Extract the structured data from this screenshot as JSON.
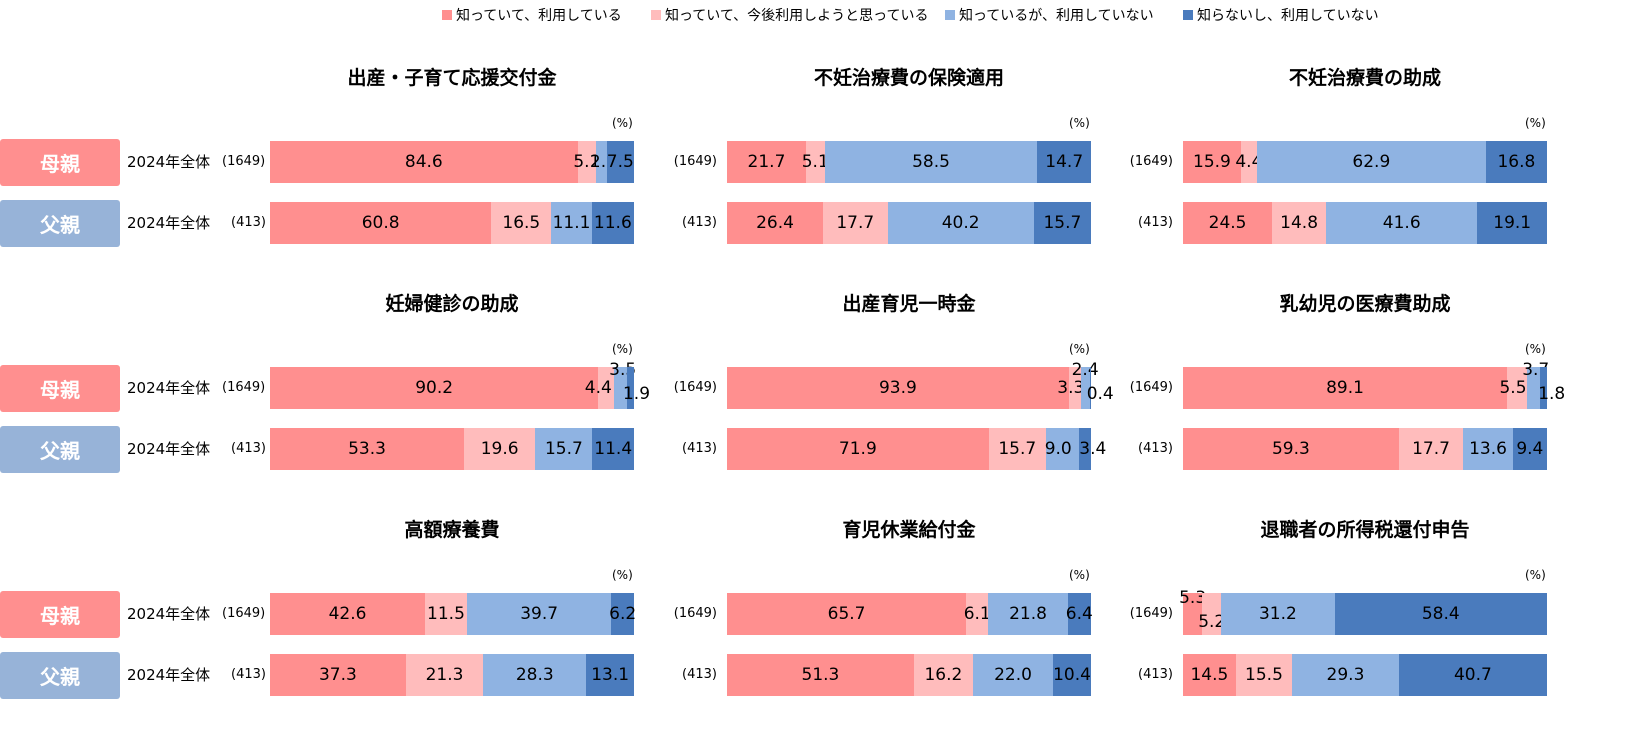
{
  "legend": [
    {
      "label": "知っていて、利用している",
      "color": "#ff8f8f"
    },
    {
      "label": "知っていて、今後利用しようと思っている",
      "color": "#ffbcbc"
    },
    {
      "label": "知っているが、利用していない",
      "color": "#8fb3e2"
    },
    {
      "label": "知らないし、利用していない",
      "color": "#4a7bbd"
    }
  ],
  "rows": {
    "mother": {
      "badge": "母親",
      "year": "2024年全体",
      "n": "(1649)"
    },
    "father": {
      "badge": "父親",
      "year": "2024年全体",
      "n": "(413)"
    }
  },
  "unit": "(%)",
  "chart_data": [
    {
      "type": "bar",
      "stacked": true,
      "title": "出産・子育て応援交付金",
      "unit": "(%)",
      "series_order": [
        "知っていて、利用している",
        "知っていて、今後利用しようと思っている",
        "知っているが、利用していない",
        "知らないし、利用していない"
      ],
      "mother": {
        "n": "(1649)",
        "values": [
          84.6,
          5.1,
          2.9,
          7.5
        ]
      },
      "father": {
        "n": "(413)",
        "values": [
          60.8,
          16.5,
          11.1,
          11.6
        ]
      }
    },
    {
      "type": "bar",
      "stacked": true,
      "title": "不妊治療費の保険適用",
      "unit": "(%)",
      "series_order": [
        "知っていて、利用している",
        "知っていて、今後利用しようと思っている",
        "知っているが、利用していない",
        "知らないし、利用していない"
      ],
      "mother": {
        "n": "(1649)",
        "values": [
          21.7,
          5.1,
          58.5,
          14.7
        ]
      },
      "father": {
        "n": "(413)",
        "values": [
          26.4,
          17.7,
          40.2,
          15.7
        ]
      }
    },
    {
      "type": "bar",
      "stacked": true,
      "title": "不妊治療費の助成",
      "unit": "(%)",
      "series_order": [
        "知っていて、利用している",
        "知っていて、今後利用しようと思っている",
        "知っているが、利用していない",
        "知らないし、利用していない"
      ],
      "mother": {
        "n": "(1649)",
        "values": [
          15.9,
          4.4,
          62.9,
          16.8
        ]
      },
      "father": {
        "n": "(413)",
        "values": [
          24.5,
          14.8,
          41.6,
          19.1
        ]
      }
    },
    {
      "type": "bar",
      "stacked": true,
      "title": "妊婦健診の助成",
      "unit": "(%)",
      "series_order": [
        "知っていて、利用している",
        "知っていて、今後利用しようと思っている",
        "知っているが、利用していない",
        "知らないし、利用していない"
      ],
      "mother": {
        "n": "(1649)",
        "values": [
          90.2,
          4.4,
          3.5,
          1.9
        ]
      },
      "father": {
        "n": "(413)",
        "values": [
          53.3,
          19.6,
          15.7,
          11.4
        ]
      }
    },
    {
      "type": "bar",
      "stacked": true,
      "title": "出産育児一時金",
      "unit": "(%)",
      "series_order": [
        "知っていて、利用している",
        "知っていて、今後利用しようと思っている",
        "知っているが、利用していない",
        "知らないし、利用していない"
      ],
      "mother": {
        "n": "(1649)",
        "values": [
          93.9,
          3.3,
          2.4,
          0.4
        ]
      },
      "father": {
        "n": "(413)",
        "values": [
          71.9,
          15.7,
          9.0,
          3.4
        ]
      }
    },
    {
      "type": "bar",
      "stacked": true,
      "title": "乳幼児の医療費助成",
      "unit": "(%)",
      "series_order": [
        "知っていて、利用している",
        "知っていて、今後利用しようと思っている",
        "知っているが、利用していない",
        "知らないし、利用していない"
      ],
      "mother": {
        "n": "(1649)",
        "values": [
          89.1,
          5.5,
          3.7,
          1.8
        ]
      },
      "father": {
        "n": "(413)",
        "values": [
          59.3,
          17.7,
          13.6,
          9.4
        ]
      }
    },
    {
      "type": "bar",
      "stacked": true,
      "title": "高額療養費",
      "unit": "(%)",
      "series_order": [
        "知っていて、利用している",
        "知っていて、今後利用しようと思っている",
        "知っているが、利用していない",
        "知らないし、利用していない"
      ],
      "mother": {
        "n": "(1649)",
        "values": [
          42.6,
          11.5,
          39.7,
          6.2
        ]
      },
      "father": {
        "n": "(413)",
        "values": [
          37.3,
          21.3,
          28.3,
          13.1
        ]
      }
    },
    {
      "type": "bar",
      "stacked": true,
      "title": "育児休業給付金",
      "unit": "(%)",
      "series_order": [
        "知っていて、利用している",
        "知っていて、今後利用しようと思っている",
        "知っているが、利用していない",
        "知らないし、利用していない"
      ],
      "mother": {
        "n": "(1649)",
        "values": [
          65.7,
          6.1,
          21.8,
          6.4
        ]
      },
      "father": {
        "n": "(413)",
        "values": [
          51.3,
          16.2,
          22.0,
          10.4
        ]
      }
    },
    {
      "type": "bar",
      "stacked": true,
      "title": "退職者の所得税還付申告",
      "unit": "(%)",
      "series_order": [
        "知っていて、利用している",
        "知っていて、今後利用しようと思っている",
        "知っているが、利用していない",
        "知らないし、利用していない"
      ],
      "mother": {
        "n": "(1649)",
        "values": [
          5.3,
          5.2,
          31.2,
          58.4
        ]
      },
      "father": {
        "n": "(413)",
        "values": [
          14.5,
          15.5,
          29.3,
          40.7
        ]
      }
    }
  ]
}
